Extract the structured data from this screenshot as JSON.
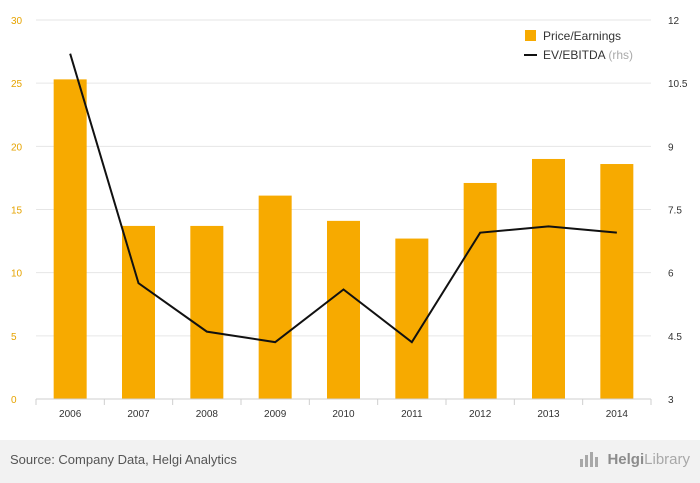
{
  "chart_data": {
    "type": "bar",
    "categories": [
      "2006",
      "2007",
      "2008",
      "2009",
      "2010",
      "2011",
      "2012",
      "2013",
      "2014"
    ],
    "series": [
      {
        "name": "Price/Earnings",
        "type": "bar",
        "axis": "left",
        "values": [
          25.3,
          13.7,
          13.7,
          16.1,
          14.1,
          12.7,
          17.1,
          19.0,
          18.6
        ]
      },
      {
        "name": "EV/EBITDA",
        "type": "line",
        "axis": "right",
        "values": [
          11.2,
          5.75,
          4.6,
          4.35,
          5.6,
          4.35,
          6.95,
          7.1,
          6.95
        ]
      }
    ],
    "legend_note": "(rhs)",
    "ylim_left": [
      0,
      30
    ],
    "yticks_left": [
      "0",
      "5",
      "10",
      "15",
      "20",
      "25",
      "30"
    ],
    "ylim_right": [
      3,
      12
    ],
    "yticks_right": [
      "3",
      "4.5",
      "6",
      "7.5",
      "9",
      "10.5",
      "12"
    ],
    "grid": true,
    "legend_position": "top-right",
    "colors": {
      "bar": "#f7aa00",
      "line": "#111111",
      "left_axis_text": "#e6a300",
      "grid": "#e6e6e6"
    }
  },
  "footer": {
    "source": "Source: Company Data, Helgi Analytics",
    "brand_part1": "Helgi",
    "brand_part2": "Library"
  }
}
